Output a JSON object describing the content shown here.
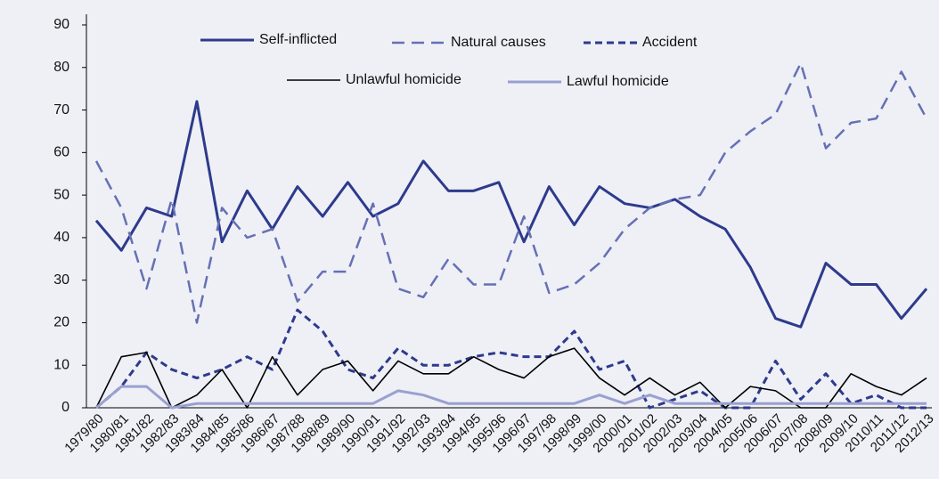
{
  "chart_data": {
    "type": "line",
    "categories": [
      "1979/80",
      "1980/81",
      "1981/82",
      "1982/83",
      "1983/84",
      "1984/85",
      "1985/86",
      "1986/87",
      "1987/88",
      "1988/89",
      "1989/90",
      "1990/91",
      "1991/92",
      "1992/93",
      "1993/94",
      "1994/95",
      "1995/96",
      "1996/97",
      "1997/98",
      "1998/99",
      "1999/00",
      "2000/01",
      "2001/02",
      "2002/03",
      "2003/04",
      "2004/05",
      "2005/06",
      "2006/07",
      "2007/08",
      "2008/09",
      "2009/10",
      "2010/11",
      "2011/12",
      "2012/13"
    ],
    "series": [
      {
        "name": "Self-inflicted",
        "color": "#2e3a8c",
        "values": [
          44,
          37,
          47,
          45,
          72,
          39,
          51,
          42,
          52,
          45,
          53,
          45,
          48,
          58,
          51,
          51,
          53,
          39,
          52,
          43,
          52,
          48,
          47,
          49,
          45,
          42,
          33,
          21,
          19,
          34,
          29,
          29,
          21,
          28
        ]
      },
      {
        "name": "Natural causes",
        "color": "#6670b4",
        "values": [
          58,
          47,
          28,
          49,
          20,
          47,
          40,
          42,
          25,
          32,
          32,
          48,
          28,
          26,
          35,
          29,
          29,
          45,
          27,
          29,
          34,
          42,
          47,
          49,
          50,
          60,
          65,
          69,
          81,
          61,
          67,
          68,
          79,
          68
        ]
      },
      {
        "name": "Accident",
        "color": "#2e3a8c",
        "values": [
          0,
          5,
          13,
          9,
          7,
          9,
          12,
          9,
          23,
          18,
          9,
          7,
          14,
          10,
          10,
          12,
          13,
          12,
          12,
          18,
          9,
          11,
          0,
          2,
          4,
          0,
          0,
          11,
          2,
          8,
          1,
          3,
          0,
          0
        ]
      },
      {
        "name": "Unlawful homicide",
        "color": "#000000",
        "values": [
          0,
          12,
          13,
          0,
          3,
          9,
          0,
          12,
          3,
          9,
          11,
          4,
          11,
          8,
          8,
          12,
          9,
          7,
          12,
          14,
          7,
          3,
          7,
          3,
          6,
          0,
          5,
          4,
          0,
          0,
          8,
          5,
          3,
          7
        ]
      },
      {
        "name": "Lawful homicide",
        "color": "#9aa0d0",
        "values": [
          0,
          5,
          5,
          0,
          1,
          1,
          1,
          1,
          1,
          1,
          1,
          1,
          4,
          3,
          1,
          1,
          1,
          1,
          1,
          1,
          3,
          1,
          3,
          1,
          1,
          1,
          1,
          1,
          1,
          1,
          1,
          1,
          1,
          1
        ]
      }
    ],
    "ylim": [
      0,
      90
    ],
    "yticks": [
      0,
      10,
      20,
      30,
      40,
      50,
      60,
      70,
      80,
      90
    ],
    "grid": false
  }
}
